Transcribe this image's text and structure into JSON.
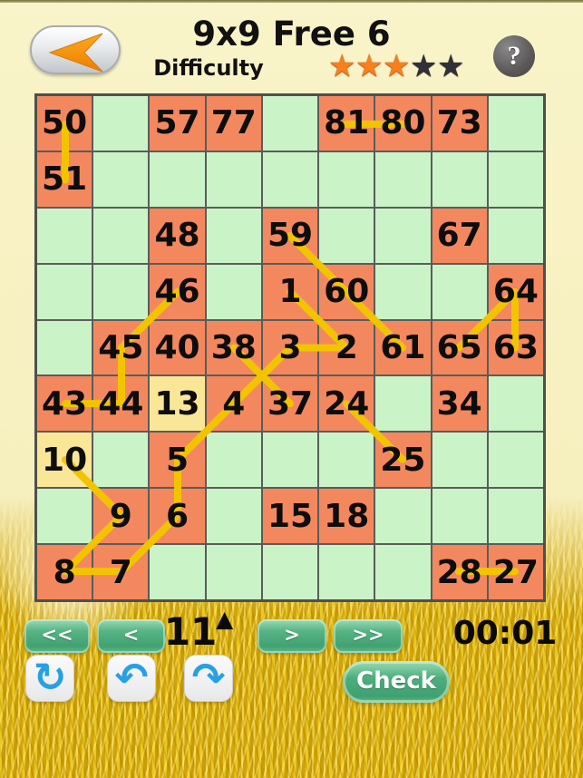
{
  "header": {
    "title": "9x9 Free 6",
    "difficulty_label": "Difficulty",
    "stars_filled": 3,
    "stars_total": 5,
    "help_label": "?"
  },
  "grid": {
    "rows": 9,
    "cols": 9,
    "cells": [
      [
        {
          "v": "50",
          "bg": "num"
        },
        {
          "bg": "empty"
        },
        {
          "v": "57",
          "bg": "num"
        },
        {
          "v": "77",
          "bg": "num"
        },
        {
          "bg": "empty"
        },
        {
          "v": "81",
          "bg": "num"
        },
        {
          "v": "80",
          "bg": "num"
        },
        {
          "v": "73",
          "bg": "num"
        },
        {
          "bg": "empty"
        }
      ],
      [
        {
          "v": "51",
          "bg": "num"
        },
        {
          "bg": "empty"
        },
        {
          "bg": "empty"
        },
        {
          "bg": "empty"
        },
        {
          "bg": "empty"
        },
        {
          "bg": "empty"
        },
        {
          "bg": "empty"
        },
        {
          "bg": "empty"
        },
        {
          "bg": "empty"
        }
      ],
      [
        {
          "bg": "empty"
        },
        {
          "bg": "empty"
        },
        {
          "v": "48",
          "bg": "num"
        },
        {
          "bg": "empty"
        },
        {
          "v": "59",
          "bg": "num"
        },
        {
          "bg": "empty"
        },
        {
          "bg": "empty"
        },
        {
          "v": "67",
          "bg": "num"
        },
        {
          "bg": "empty"
        }
      ],
      [
        {
          "bg": "empty"
        },
        {
          "bg": "empty"
        },
        {
          "v": "46",
          "bg": "num"
        },
        {
          "bg": "empty"
        },
        {
          "v": "1",
          "bg": "num"
        },
        {
          "v": "60",
          "bg": "num"
        },
        {
          "bg": "empty"
        },
        {
          "bg": "empty"
        },
        {
          "v": "64",
          "bg": "num"
        }
      ],
      [
        {
          "bg": "empty"
        },
        {
          "v": "45",
          "bg": "num"
        },
        {
          "v": "40",
          "bg": "num"
        },
        {
          "v": "38",
          "bg": "num"
        },
        {
          "v": "3",
          "bg": "num"
        },
        {
          "v": "2",
          "bg": "num"
        },
        {
          "v": "61",
          "bg": "num"
        },
        {
          "v": "65",
          "bg": "num"
        },
        {
          "v": "63",
          "bg": "num"
        }
      ],
      [
        {
          "v": "43",
          "bg": "num"
        },
        {
          "v": "44",
          "bg": "num"
        },
        {
          "v": "13",
          "bg": "hint"
        },
        {
          "v": "4",
          "bg": "num"
        },
        {
          "v": "37",
          "bg": "num"
        },
        {
          "v": "24",
          "bg": "num"
        },
        {
          "bg": "empty"
        },
        {
          "v": "34",
          "bg": "num"
        },
        {
          "bg": "empty"
        }
      ],
      [
        {
          "v": "10",
          "bg": "hint"
        },
        {
          "bg": "empty"
        },
        {
          "v": "5",
          "bg": "num"
        },
        {
          "bg": "empty"
        },
        {
          "bg": "empty"
        },
        {
          "bg": "empty"
        },
        {
          "v": "25",
          "bg": "num"
        },
        {
          "bg": "empty"
        },
        {
          "bg": "empty"
        }
      ],
      [
        {
          "bg": "empty"
        },
        {
          "v": "9",
          "bg": "num"
        },
        {
          "v": "6",
          "bg": "num"
        },
        {
          "bg": "empty"
        },
        {
          "v": "15",
          "bg": "num"
        },
        {
          "v": "18",
          "bg": "num"
        },
        {
          "bg": "empty"
        },
        {
          "bg": "empty"
        },
        {
          "bg": "empty"
        }
      ],
      [
        {
          "v": "8",
          "bg": "num"
        },
        {
          "v": "7",
          "bg": "num"
        },
        {
          "bg": "empty"
        },
        {
          "bg": "empty"
        },
        {
          "bg": "empty"
        },
        {
          "bg": "empty"
        },
        {
          "bg": "empty"
        },
        {
          "v": "28",
          "bg": "num"
        },
        {
          "v": "27",
          "bg": "num"
        }
      ]
    ],
    "lines": [
      [
        1,
        1,
        2,
        1
      ],
      [
        1,
        6,
        1,
        7
      ],
      [
        3,
        5,
        4,
        6
      ],
      [
        4,
        6,
        5,
        7
      ],
      [
        4,
        5,
        5,
        6
      ],
      [
        5,
        5,
        5,
        6
      ],
      [
        5,
        5,
        6,
        4
      ],
      [
        5,
        4,
        6,
        5
      ],
      [
        4,
        3,
        5,
        2
      ],
      [
        5,
        2,
        6,
        2
      ],
      [
        6,
        2,
        6,
        1
      ],
      [
        4,
        9,
        5,
        8
      ],
      [
        4,
        9,
        5,
        9
      ],
      [
        6,
        4,
        7,
        3
      ],
      [
        7,
        3,
        8,
        3
      ],
      [
        8,
        3,
        9,
        2
      ],
      [
        9,
        2,
        9,
        1
      ],
      [
        9,
        1,
        8,
        2
      ],
      [
        8,
        2,
        7,
        1
      ],
      [
        6,
        6,
        7,
        7
      ],
      [
        9,
        8,
        9,
        9
      ]
    ]
  },
  "controls": {
    "first_label": "<<",
    "prev_label": "<",
    "next_label": ">",
    "last_label": ">>",
    "counter": "11",
    "pointer_icon": "▲",
    "timer": "00:01",
    "restart_icon": "↻",
    "undo_icon": "↶",
    "redo_icon": "↷",
    "check_label": "Check"
  },
  "colors": {
    "cell_num": "#f3885f",
    "cell_empty": "#caf3c8",
    "cell_hint": "#fae697",
    "path_line": "#f2c400",
    "grid_line": "#5a5c5a",
    "star_filled": "#f5801e",
    "star_empty": "#303036",
    "button_green": "#4fae7e",
    "icon_blue": "#28a0e4",
    "back_arrow_orange": "#f7941e"
  }
}
